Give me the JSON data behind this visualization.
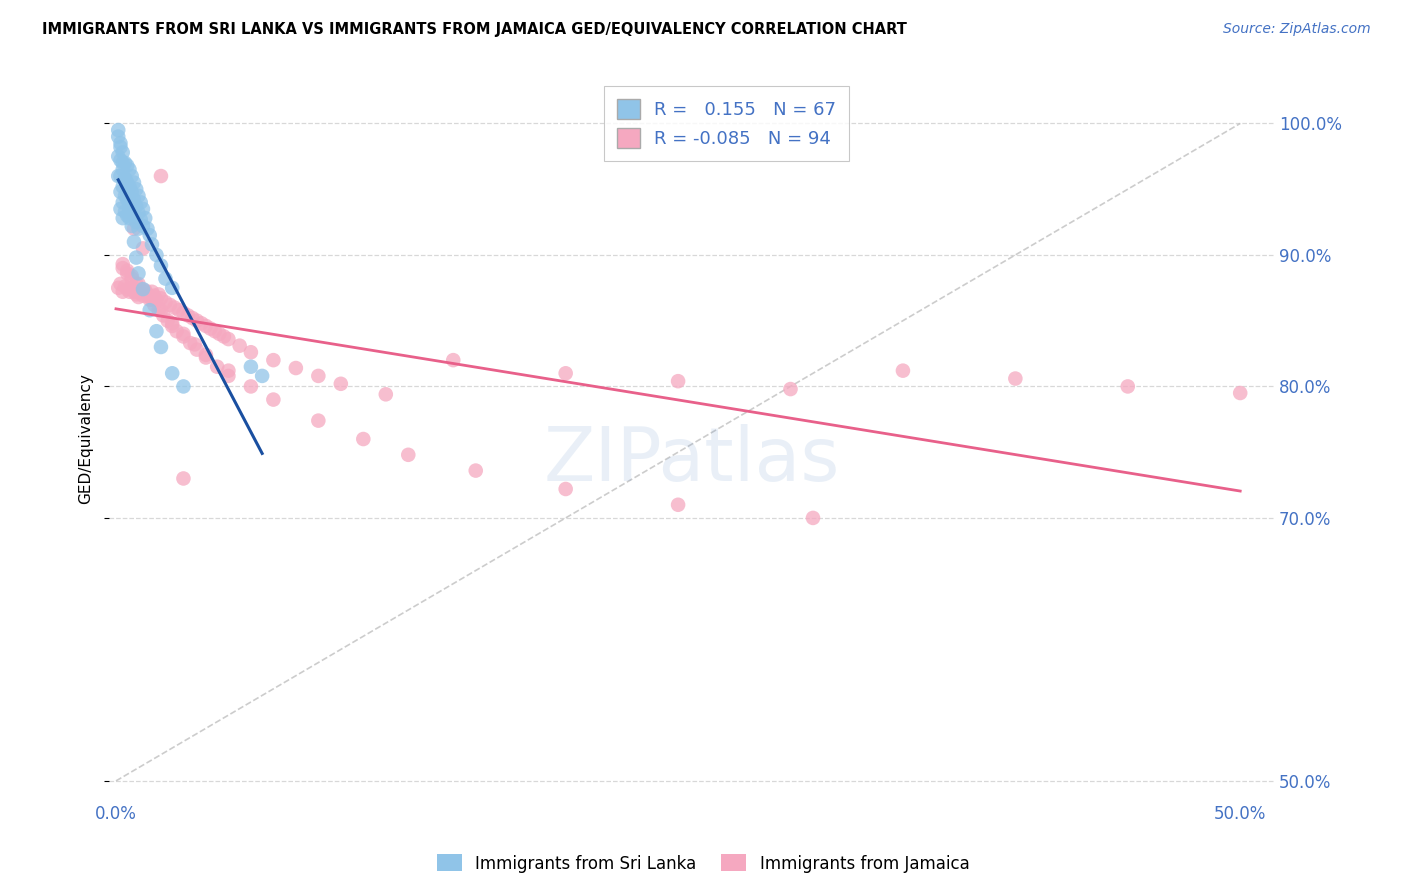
{
  "title": "IMMIGRANTS FROM SRI LANKA VS IMMIGRANTS FROM JAMAICA GED/EQUIVALENCY CORRELATION CHART",
  "source": "Source: ZipAtlas.com",
  "ylabel": "GED/Equivalency",
  "xlim": [
    -0.003,
    0.515
  ],
  "ylim": [
    0.485,
    1.035
  ],
  "r_blue": 0.155,
  "n_blue": 67,
  "r_pink": -0.085,
  "n_pink": 94,
  "color_blue": "#90c4e8",
  "color_pink": "#f5a8c0",
  "color_blue_line": "#1a4fa0",
  "color_pink_line": "#e8608a",
  "color_diag": "#c0c0c0",
  "color_grid": "#d8d8d8",
  "color_axis_text": "#4472c4",
  "legend_label_blue": "Immigrants from Sri Lanka",
  "legend_label_pink": "Immigrants from Jamaica",
  "watermark": "ZIPatlas",
  "blue_x": [
    0.001,
    0.001,
    0.001,
    0.002,
    0.002,
    0.002,
    0.002,
    0.002,
    0.003,
    0.003,
    0.003,
    0.003,
    0.003,
    0.004,
    0.004,
    0.004,
    0.004,
    0.005,
    0.005,
    0.005,
    0.005,
    0.006,
    0.006,
    0.006,
    0.006,
    0.007,
    0.007,
    0.007,
    0.008,
    0.008,
    0.008,
    0.009,
    0.009,
    0.009,
    0.01,
    0.01,
    0.01,
    0.011,
    0.011,
    0.012,
    0.012,
    0.013,
    0.014,
    0.015,
    0.016,
    0.018,
    0.02,
    0.022,
    0.025,
    0.001,
    0.002,
    0.003,
    0.004,
    0.005,
    0.006,
    0.007,
    0.008,
    0.009,
    0.01,
    0.012,
    0.015,
    0.018,
    0.02,
    0.025,
    0.03,
    0.06,
    0.065
  ],
  "blue_y": [
    0.99,
    0.975,
    0.96,
    0.985,
    0.972,
    0.96,
    0.948,
    0.935,
    0.978,
    0.965,
    0.952,
    0.94,
    0.928,
    0.97,
    0.958,
    0.945,
    0.933,
    0.968,
    0.955,
    0.942,
    0.93,
    0.965,
    0.952,
    0.94,
    0.928,
    0.96,
    0.948,
    0.935,
    0.955,
    0.942,
    0.93,
    0.95,
    0.937,
    0.925,
    0.945,
    0.932,
    0.92,
    0.94,
    0.927,
    0.935,
    0.922,
    0.928,
    0.92,
    0.915,
    0.908,
    0.9,
    0.892,
    0.882,
    0.875,
    0.995,
    0.982,
    0.97,
    0.958,
    0.946,
    0.934,
    0.922,
    0.91,
    0.898,
    0.886,
    0.874,
    0.858,
    0.842,
    0.83,
    0.81,
    0.8,
    0.815,
    0.808
  ],
  "pink_x": [
    0.001,
    0.002,
    0.003,
    0.004,
    0.005,
    0.006,
    0.007,
    0.008,
    0.009,
    0.01,
    0.011,
    0.012,
    0.013,
    0.014,
    0.015,
    0.016,
    0.017,
    0.018,
    0.019,
    0.02,
    0.022,
    0.024,
    0.026,
    0.028,
    0.03,
    0.032,
    0.034,
    0.036,
    0.038,
    0.04,
    0.042,
    0.044,
    0.046,
    0.048,
    0.05,
    0.055,
    0.06,
    0.07,
    0.08,
    0.09,
    0.1,
    0.12,
    0.15,
    0.2,
    0.25,
    0.3,
    0.35,
    0.4,
    0.45,
    0.5,
    0.003,
    0.005,
    0.007,
    0.009,
    0.011,
    0.013,
    0.015,
    0.017,
    0.019,
    0.021,
    0.023,
    0.025,
    0.027,
    0.03,
    0.033,
    0.036,
    0.04,
    0.045,
    0.05,
    0.003,
    0.005,
    0.007,
    0.01,
    0.013,
    0.016,
    0.02,
    0.025,
    0.03,
    0.035,
    0.04,
    0.05,
    0.06,
    0.07,
    0.09,
    0.11,
    0.13,
    0.16,
    0.2,
    0.25,
    0.31,
    0.008,
    0.012,
    0.02,
    0.03
  ],
  "pink_y": [
    0.875,
    0.878,
    0.872,
    0.876,
    0.874,
    0.872,
    0.875,
    0.872,
    0.87,
    0.868,
    0.871,
    0.869,
    0.873,
    0.87,
    0.868,
    0.872,
    0.869,
    0.866,
    0.87,
    0.867,
    0.864,
    0.862,
    0.86,
    0.858,
    0.856,
    0.854,
    0.852,
    0.85,
    0.848,
    0.846,
    0.844,
    0.842,
    0.84,
    0.838,
    0.836,
    0.831,
    0.826,
    0.82,
    0.814,
    0.808,
    0.802,
    0.794,
    0.82,
    0.81,
    0.804,
    0.798,
    0.812,
    0.806,
    0.8,
    0.795,
    0.89,
    0.886,
    0.882,
    0.878,
    0.874,
    0.87,
    0.866,
    0.862,
    0.858,
    0.854,
    0.85,
    0.846,
    0.842,
    0.838,
    0.833,
    0.828,
    0.822,
    0.815,
    0.808,
    0.893,
    0.888,
    0.884,
    0.878,
    0.872,
    0.866,
    0.858,
    0.848,
    0.84,
    0.832,
    0.824,
    0.812,
    0.8,
    0.79,
    0.774,
    0.76,
    0.748,
    0.736,
    0.722,
    0.71,
    0.7,
    0.92,
    0.905,
    0.96,
    0.73
  ],
  "xtick_positions": [
    0.0,
    0.5
  ],
  "xtick_labels": [
    "0.0%",
    "50.0%"
  ],
  "ytick_positions": [
    0.5,
    0.7,
    0.8,
    0.9,
    1.0
  ],
  "ytick_labels": [
    "50.0%",
    "70.0%",
    "80.0%",
    "90.0%",
    "100.0%"
  ]
}
